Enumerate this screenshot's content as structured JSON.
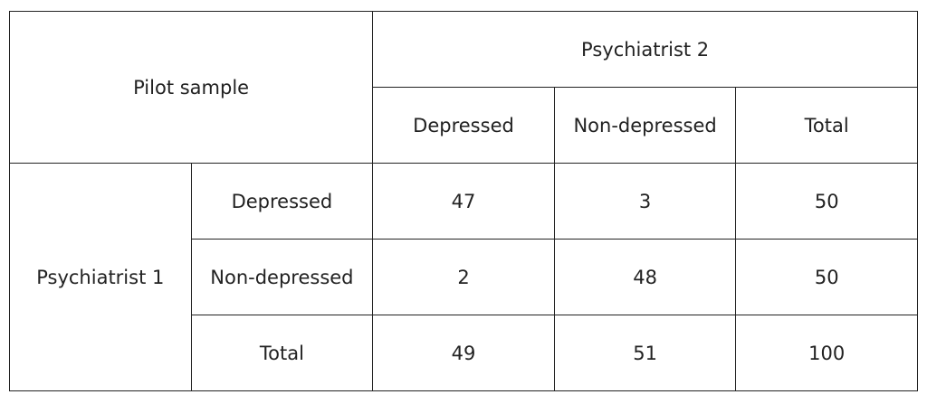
{
  "table": {
    "title": "Pilot sample",
    "column_group": "Psychiatrist 2",
    "columns": [
      "Depressed",
      "Non-depressed",
      "Total"
    ],
    "row_group": "Psychiatrist 1",
    "rows": [
      {
        "label": "Depressed",
        "values": [
          47,
          3,
          50
        ]
      },
      {
        "label": "Non-depressed",
        "values": [
          2,
          48,
          50
        ]
      },
      {
        "label": "Total",
        "values": [
          49,
          51,
          100
        ]
      }
    ]
  }
}
